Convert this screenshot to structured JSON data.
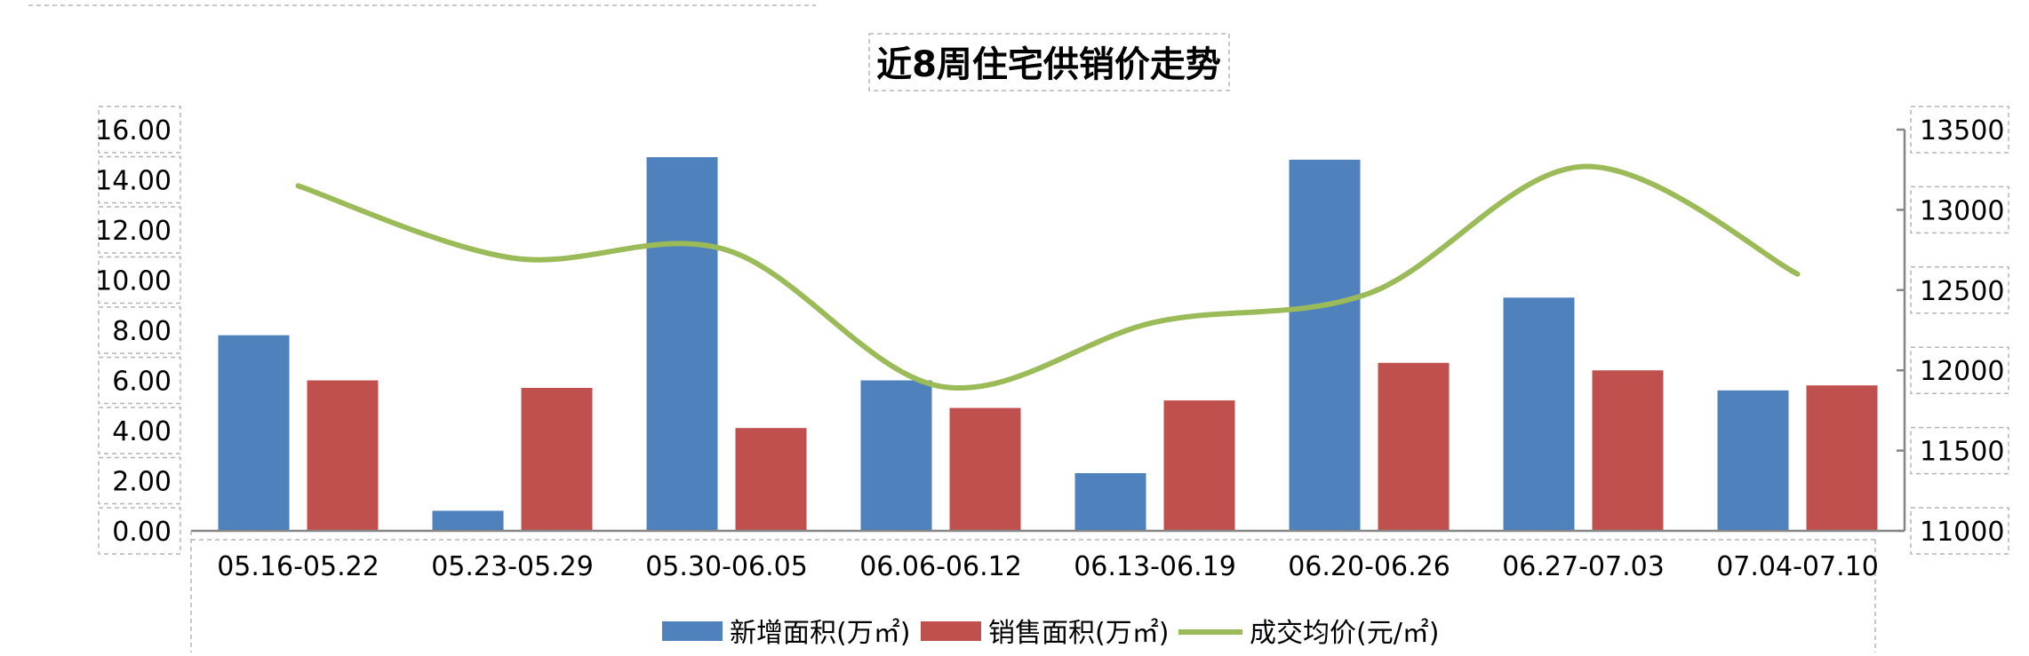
{
  "chart_data": {
    "type": "bar",
    "title": "近8周住宅供销价走势",
    "categories": [
      "05.16-05.22",
      "05.23-05.29",
      "05.30-06.05",
      "06.06-06.12",
      "06.13-06.19",
      "06.20-06.26",
      "06.27-07.03",
      "07.04-07.10"
    ],
    "y_left": {
      "ylim": [
        0,
        16
      ],
      "ticks": [
        "0.00",
        "2.00",
        "4.00",
        "6.00",
        "8.00",
        "10.00",
        "12.00",
        "14.00",
        "16.00"
      ]
    },
    "y_right": {
      "ylim": [
        11000,
        13500
      ],
      "ticks": [
        "11000",
        "11500",
        "12000",
        "12500",
        "13000",
        "13500"
      ]
    },
    "series": [
      {
        "name": "新增面积(万㎡)",
        "type": "bar",
        "axis": "left",
        "color": "#4F81BD",
        "values": [
          7.8,
          0.8,
          14.9,
          6.0,
          2.3,
          14.8,
          9.3,
          5.6
        ]
      },
      {
        "name": "销售面积(万㎡)",
        "type": "bar",
        "axis": "left",
        "color": "#C0504D",
        "values": [
          6.0,
          5.7,
          4.1,
          4.9,
          5.2,
          6.7,
          6.4,
          5.8
        ]
      },
      {
        "name": "成交均价(元/㎡)",
        "type": "line",
        "axis": "right",
        "color": "#9BBB59",
        "smooth": true,
        "values": [
          13150,
          12700,
          12750,
          11900,
          12300,
          12480,
          13270,
          12600
        ]
      }
    ],
    "legend_position": "bottom",
    "grid": false
  }
}
